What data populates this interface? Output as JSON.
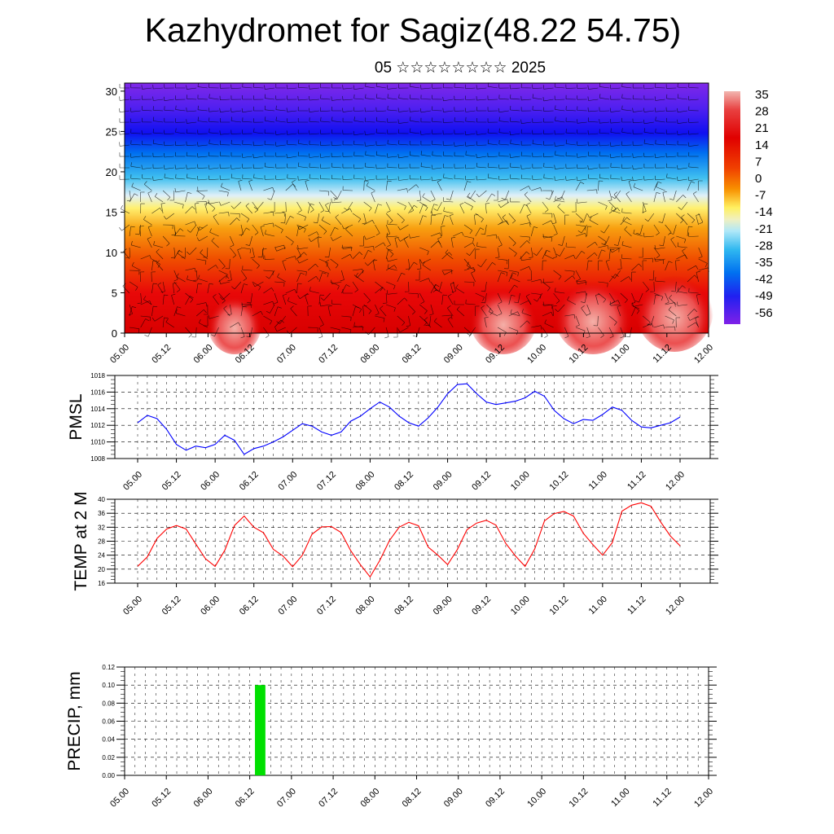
{
  "title": "Kazhydromet for Sagiz(48.22 54.75)",
  "subtitle": "05 ☆☆☆☆☆☆☆☆ 2025",
  "time_labels": [
    "05.00",
    "05.12",
    "06.00",
    "06.12",
    "07.00",
    "07.12",
    "08.00",
    "08.12",
    "09.00",
    "09.12",
    "10.00",
    "10.12",
    "11.00",
    "11.12",
    "12.00"
  ],
  "colors": {
    "pmsl": "#0000ff",
    "temp": "#ff0000",
    "precip": "#00e000",
    "grid": "#000000"
  },
  "chart_data": [
    {
      "type": "heatmap",
      "title": "",
      "description_y_ticks": [
        0,
        5,
        10,
        15,
        20,
        25,
        30
      ],
      "ylim": [
        0,
        31
      ],
      "x_ticks": [
        "05.00",
        "05.12",
        "06.00",
        "06.12",
        "07.00",
        "07.12",
        "08.00",
        "08.12",
        "09.00",
        "09.12",
        "10.00",
        "10.12",
        "11.00",
        "11.12",
        "12.00"
      ],
      "colorbar_labels": [
        "35",
        "28",
        "21",
        "14",
        "7",
        "0",
        "-7",
        "-14",
        "-21",
        "-28",
        "-35",
        "-42",
        "-49",
        "-56"
      ],
      "colorbar_values": [
        35,
        28,
        21,
        14,
        7,
        0,
        -7,
        -14,
        -21,
        -28,
        -35,
        -42,
        -49,
        -56
      ],
      "overlay": "wind barbs"
    },
    {
      "type": "line",
      "ylabel": "PMSL",
      "ylim": [
        1008,
        1018
      ],
      "y_ticks": [
        "1018",
        "1016",
        "1014",
        "1012",
        "1010",
        "1008"
      ],
      "x_ticks": [
        "05.00",
        "05.12",
        "06.00",
        "06.12",
        "07.00",
        "07.12",
        "08.00",
        "08.12",
        "09.00",
        "09.12",
        "10.00",
        "10.12",
        "11.00",
        "11.12",
        "12.00"
      ],
      "x_hours": [
        0,
        3,
        6,
        9,
        12,
        15,
        18,
        21,
        24,
        27,
        30,
        33,
        36,
        39,
        42,
        45,
        48,
        51,
        54,
        57,
        60,
        63,
        66,
        69,
        72,
        75,
        78,
        81,
        84,
        87,
        90,
        93,
        96,
        99,
        102,
        105,
        108,
        111,
        114,
        117,
        120,
        123,
        126,
        129,
        132,
        135,
        138,
        141,
        144,
        147,
        150,
        153,
        156,
        159,
        162,
        165,
        168
      ],
      "values": [
        1012.3,
        1013.2,
        1012.8,
        1011.5,
        1009.7,
        1009.0,
        1009.5,
        1009.3,
        1009.7,
        1010.8,
        1010.2,
        1008.5,
        1009.2,
        1009.5,
        1010.0,
        1010.6,
        1011.4,
        1012.2,
        1011.9,
        1011.2,
        1010.8,
        1011.2,
        1012.5,
        1013.1,
        1014.0,
        1014.8,
        1014.2,
        1013.1,
        1012.3,
        1011.9,
        1012.9,
        1014.2,
        1015.8,
        1016.9,
        1017.0,
        1015.8,
        1014.8,
        1014.5,
        1014.7,
        1014.9,
        1015.3,
        1016.1,
        1015.5,
        1013.8,
        1012.8,
        1012.2,
        1012.7,
        1012.6,
        1013.3,
        1014.2,
        1013.8,
        1012.6,
        1011.8,
        1011.7,
        1012.0,
        1012.3,
        1013.0
      ],
      "series_color": "#0000ff"
    },
    {
      "type": "line",
      "ylabel": "TEMP at 2 M",
      "ylim": [
        16,
        40
      ],
      "y_ticks": [
        "40",
        "36",
        "32",
        "28",
        "24",
        "20",
        "16"
      ],
      "x_ticks": [
        "05.00",
        "05.12",
        "06.00",
        "06.12",
        "07.00",
        "07.12",
        "08.00",
        "08.12",
        "09.00",
        "09.12",
        "10.00",
        "10.12",
        "11.00",
        "11.12",
        "12.00"
      ],
      "x_hours": [
        0,
        3,
        6,
        9,
        12,
        15,
        18,
        21,
        24,
        27,
        30,
        33,
        36,
        39,
        42,
        45,
        48,
        51,
        54,
        57,
        60,
        63,
        66,
        69,
        72,
        75,
        78,
        81,
        84,
        87,
        90,
        93,
        96,
        99,
        102,
        105,
        108,
        111,
        114,
        117,
        120,
        123,
        126,
        129,
        132,
        135,
        138,
        141,
        144,
        147,
        150,
        153,
        156,
        159,
        162,
        165,
        168
      ],
      "values": [
        20.8,
        23.5,
        28.8,
        31.5,
        32.5,
        31.5,
        27.2,
        23.0,
        20.8,
        25.4,
        32.5,
        35.2,
        32.0,
        30.4,
        25.7,
        23.8,
        20.7,
        24.0,
        30.0,
        32.1,
        32.2,
        30.5,
        25.3,
        21.3,
        17.8,
        22.5,
        28.2,
        32.0,
        33.4,
        32.4,
        26.3,
        24.0,
        21.3,
        25.6,
        31.3,
        33.2,
        34.0,
        32.6,
        27.4,
        23.8,
        20.8,
        25.8,
        33.8,
        35.9,
        36.5,
        35.2,
        30.3,
        27.0,
        24.0,
        27.6,
        36.6,
        38.3,
        39.0,
        38.0,
        33.5,
        29.5,
        26.7
      ],
      "series_color": "#ff0000"
    },
    {
      "type": "bar",
      "ylabel": "PRECIP, mm",
      "ylim": [
        0,
        0.12
      ],
      "y_ticks": [
        "0.12",
        "0.10",
        "0.08",
        "0.06",
        "0.04",
        "0.02",
        "0.00"
      ],
      "x_ticks": [
        "05.00",
        "05.12",
        "06.00",
        "06.12",
        "07.00",
        "07.12",
        "08.00",
        "08.12",
        "09.00",
        "09.12",
        "10.00",
        "10.12",
        "11.00",
        "11.12",
        "12.00"
      ],
      "bars": [
        {
          "hour_start": 37.5,
          "hour_end": 40.5,
          "value": 0.1
        }
      ],
      "series_color": "#00e000"
    }
  ]
}
